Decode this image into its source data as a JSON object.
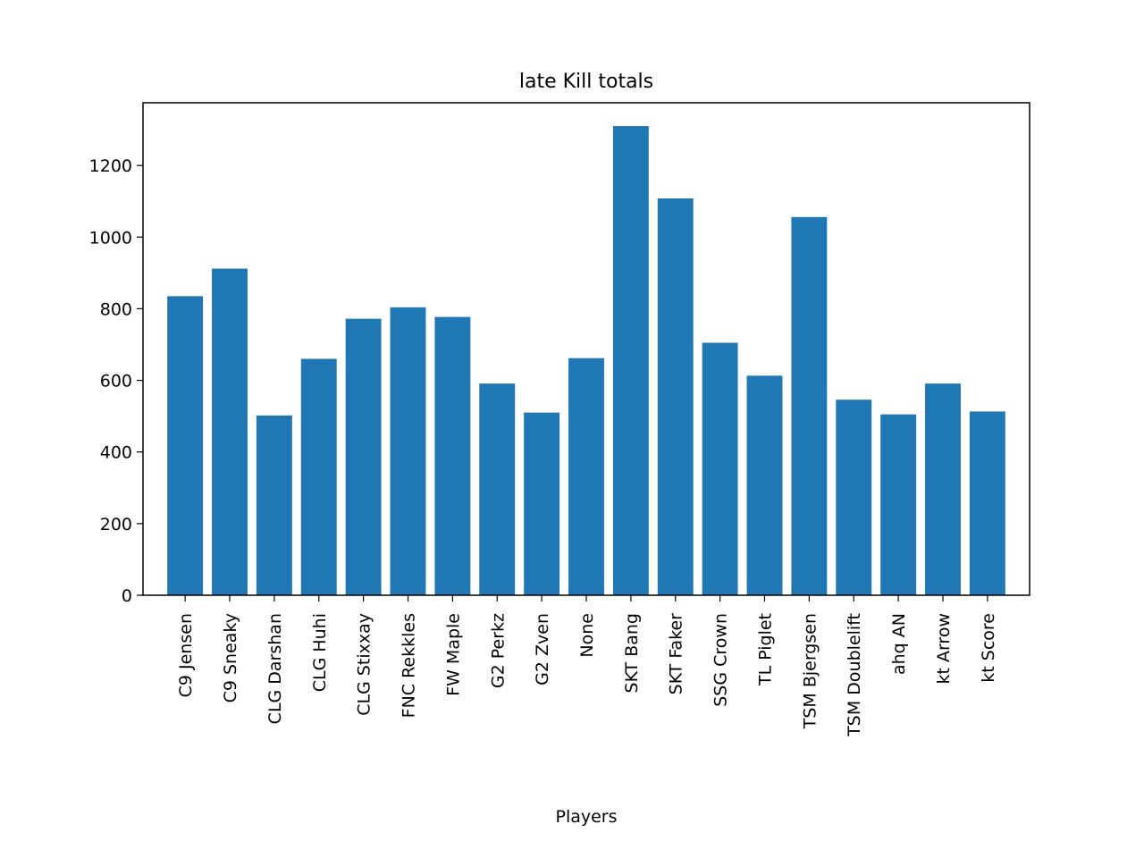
{
  "chart_data": {
    "type": "bar",
    "title": "late Kill totals",
    "xlabel": "Players",
    "ylabel": "",
    "categories": [
      "C9 Jensen",
      "C9 Sneaky",
      "CLG Darshan",
      "CLG Huhi",
      "CLG Stixxay",
      "FNC Rekkles",
      "FW Maple",
      "G2 Perkz",
      "G2 Zven",
      "None",
      "SKT Bang",
      "SKT Faker",
      "SSG Crown",
      "TL Piglet",
      "TSM Bjergsen",
      "TSM Doublelift",
      "ahq AN",
      "kt Arrow",
      "kt Score"
    ],
    "values": [
      835,
      912,
      502,
      660,
      772,
      804,
      777,
      591,
      510,
      662,
      1310,
      1108,
      705,
      613,
      1056,
      546,
      505,
      591,
      513
    ],
    "ylim": [
      0,
      1375
    ],
    "yticks": [
      0,
      200,
      400,
      600,
      800,
      1000,
      1200
    ],
    "grid": false,
    "legend": "none",
    "bar_color": "#1f77b4"
  }
}
